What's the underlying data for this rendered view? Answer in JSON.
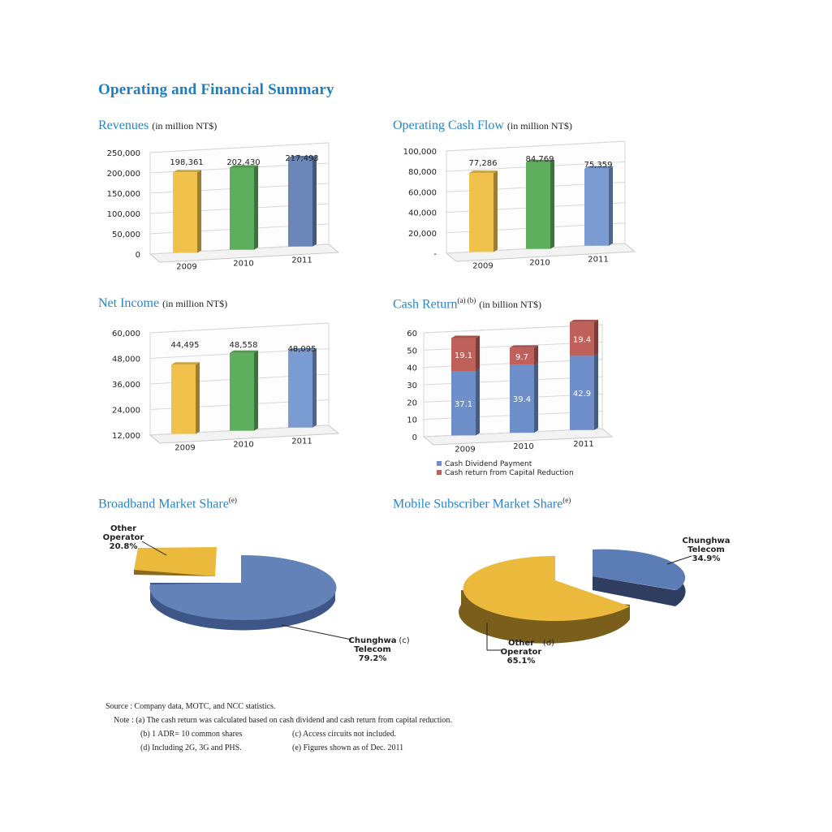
{
  "page": {
    "title": "Operating and Financial Summary"
  },
  "sections": {
    "revenues": {
      "title": "Revenues",
      "unit": "(in million NT$)"
    },
    "cashflow": {
      "title": "Operating Cash Flow",
      "unit": "(in million NT$)"
    },
    "netincome": {
      "title": "Net Income",
      "unit": "(in million NT$)"
    },
    "cashreturn": {
      "title": "Cash Return",
      "sup": "(a) (b)",
      "unit": "(in billion NT$)"
    },
    "broadband": {
      "title": "Broadband Market Share",
      "sup": "(e)"
    },
    "mobile": {
      "title": "Mobile Subscriber Market Share",
      "sup": "(e)"
    }
  },
  "chart_data": [
    {
      "id": "revenues",
      "type": "bar",
      "categories": [
        "2009",
        "2010",
        "2011"
      ],
      "values": [
        198361,
        202430,
        217493
      ],
      "value_labels": [
        "198,361",
        "202,430",
        "217,493"
      ],
      "yticks": [
        "0",
        "50,000",
        "100,000",
        "150,000",
        "200,000",
        "250,000"
      ],
      "ylim": [
        0,
        250000
      ],
      "colors": [
        "#f0c24b",
        "#5fae5d",
        "#6b86b8"
      ]
    },
    {
      "id": "cashflow",
      "type": "bar",
      "categories": [
        "2009",
        "2010",
        "2011"
      ],
      "values": [
        77286,
        84769,
        75359
      ],
      "value_labels": [
        "77,286",
        "84,769",
        "75,359"
      ],
      "yticks": [
        "-",
        "20,000",
        "40,000",
        "60,000",
        "80,000",
        "100,000"
      ],
      "ylim": [
        0,
        100000
      ],
      "colors": [
        "#f0c24b",
        "#5fae5d",
        "#7b9cd2"
      ]
    },
    {
      "id": "netincome",
      "type": "bar",
      "categories": [
        "2009",
        "2010",
        "2011"
      ],
      "values": [
        44495,
        48558,
        48095
      ],
      "value_labels": [
        "44,495",
        "48,558",
        "48,095"
      ],
      "yticks": [
        "12,000",
        "24,000",
        "36,000",
        "48,000",
        "60,000"
      ],
      "ylim": [
        12000,
        60000
      ],
      "colors": [
        "#f0c24b",
        "#5fae5d",
        "#7b9cd2"
      ]
    },
    {
      "id": "cashreturn",
      "type": "bar",
      "stacked": true,
      "categories": [
        "2009",
        "2010",
        "2011"
      ],
      "series": [
        {
          "name": "Cash Dividend Payment",
          "values": [
            37.1,
            39.4,
            42.9
          ],
          "color": "#6f8fca"
        },
        {
          "name": "Cash return from Capital Reduction",
          "values": [
            19.1,
            9.7,
            19.4
          ],
          "color": "#c0605a"
        }
      ],
      "yticks": [
        "0",
        "10",
        "20",
        "30",
        "40",
        "50",
        "60"
      ],
      "ylim": [
        0,
        60
      ]
    },
    {
      "id": "broadband",
      "type": "pie",
      "slices": [
        {
          "label": "Other Operator",
          "value": 20.8,
          "value_label": "20.8%",
          "color": "#ebb93b"
        },
        {
          "label": "Chunghwa Telecom",
          "note": "(c)",
          "value": 79.2,
          "value_label": "79.2%",
          "color": "#6282b8"
        }
      ]
    },
    {
      "id": "mobile",
      "type": "pie",
      "slices": [
        {
          "label": "Chunghwa Telecom",
          "value": 34.9,
          "value_label": "34.9%",
          "color": "#5c7cb6"
        },
        {
          "label": "Other Operator",
          "note": "(d)",
          "value": 65.1,
          "value_label": "65.1%",
          "color": "#ebb93b"
        }
      ]
    }
  ],
  "labels": {
    "bb_other": [
      "Other",
      "Operator",
      "20.8%"
    ],
    "bb_cht": [
      "Chunghwa",
      "Telecom",
      "79.2%"
    ],
    "bb_cht_note": "(c)",
    "mob_cht": [
      "Chunghwa",
      "Telecom",
      "34.9%"
    ],
    "mob_other": [
      "Other",
      "Operator",
      "65.1%"
    ],
    "mob_other_note": "(d)"
  },
  "notes": {
    "source": "Source : Company data, MOTC, and NCC statistics.",
    "note_a": "Note : (a) The cash return was calculated based on cash dividend and cash return from capital reduction.",
    "note_b": "(b) 1 ADR= 10 common shares",
    "note_c": "(c) Access circuits not included.",
    "note_d": "(d) Including 2G, 3G and PHS.",
    "note_e": "(e) Figures shown as of Dec. 2011"
  }
}
